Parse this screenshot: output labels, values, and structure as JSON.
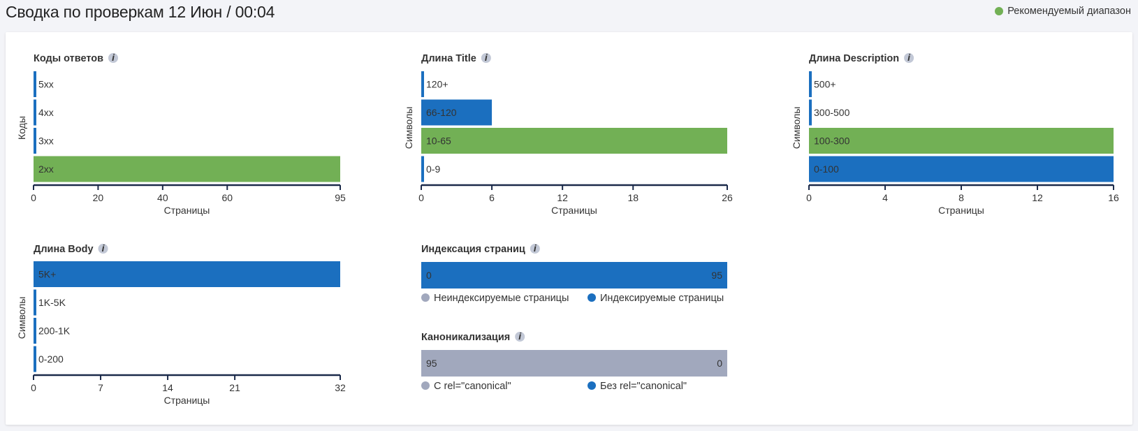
{
  "header": {
    "title": "Сводка по проверкам 12 Июн / 00:04",
    "legend_label": "Рекомендуемый диапазон"
  },
  "colors": {
    "recommended": "#72b055",
    "bar": "#1b6fbf",
    "neutral": "#a1a8bd",
    "axis": "#1b2a4a",
    "info": "#c2c8d6"
  },
  "chart_data": [
    {
      "id": "codes",
      "type": "bar",
      "orientation": "horizontal",
      "title": "Коды ответов",
      "ylabel": "Коды",
      "xlabel": "Страницы",
      "categories": [
        "5xx",
        "4xx",
        "3xx",
        "2xx"
      ],
      "values": [
        0,
        0,
        0,
        95
      ],
      "recommended": [
        false,
        false,
        false,
        true
      ],
      "xlim": [
        0,
        95
      ],
      "ticks": [
        0,
        20,
        40,
        60,
        95
      ]
    },
    {
      "id": "title-length",
      "type": "bar",
      "orientation": "horizontal",
      "title": "Длина Title",
      "ylabel": "Символы",
      "xlabel": "Страницы",
      "categories": [
        "120+",
        "66-120",
        "10-65",
        "0-9"
      ],
      "values": [
        0,
        6,
        26,
        0
      ],
      "recommended": [
        false,
        false,
        true,
        false
      ],
      "xlim": [
        0,
        26
      ],
      "ticks": [
        0,
        6,
        12,
        18,
        26
      ]
    },
    {
      "id": "description-length",
      "type": "bar",
      "orientation": "horizontal",
      "title": "Длина Description",
      "ylabel": "Символы",
      "xlabel": "Страницы",
      "categories": [
        "500+",
        "300-500",
        "100-300",
        "0-100"
      ],
      "values": [
        0,
        0,
        16,
        16
      ],
      "recommended": [
        false,
        false,
        true,
        false
      ],
      "xlim": [
        0,
        16
      ],
      "ticks": [
        0,
        4,
        8,
        12,
        16
      ]
    },
    {
      "id": "body-length",
      "type": "bar",
      "orientation": "horizontal",
      "title": "Длина Body",
      "ylabel": "Символы",
      "xlabel": "Страницы",
      "categories": [
        "5K+",
        "1K-5K",
        "200-1K",
        "0-200"
      ],
      "values": [
        32,
        0,
        0,
        0
      ],
      "recommended": [
        false,
        false,
        false,
        false
      ],
      "xlim": [
        0,
        32
      ],
      "ticks": [
        0,
        7,
        14,
        21,
        32
      ]
    },
    {
      "id": "indexing",
      "type": "bar",
      "orientation": "stacked-horizontal",
      "title": "Индексация страниц",
      "series": [
        {
          "name": "Неиндексируемые страницы",
          "value": 0,
          "color": "#a1a8bd"
        },
        {
          "name": "Индексируемые страницы",
          "value": 95,
          "color": "#1b6fbf"
        }
      ]
    },
    {
      "id": "canonical",
      "type": "bar",
      "orientation": "stacked-horizontal",
      "title": "Каноникализация",
      "series": [
        {
          "name": "С rel=\"canonical\"",
          "value": 95,
          "color": "#a1a8bd"
        },
        {
          "name": "Без rel=\"canonical\"",
          "value": 0,
          "color": "#1b6fbf"
        }
      ]
    }
  ]
}
